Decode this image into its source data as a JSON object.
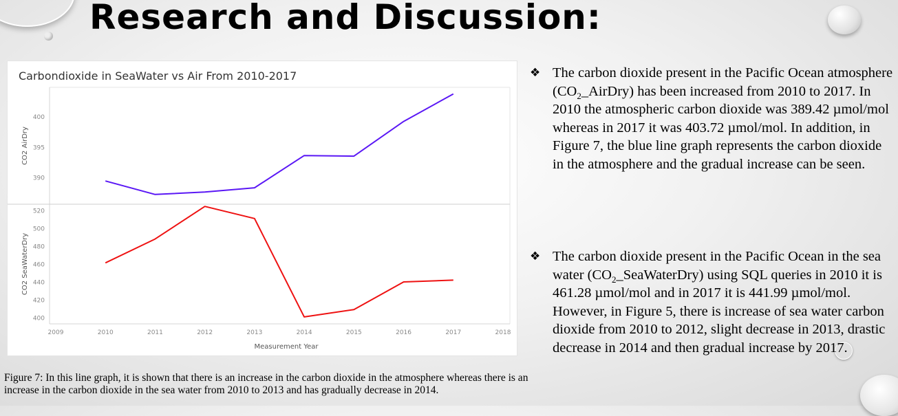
{
  "slide": {
    "title": "Research and Discussion:",
    "caption": "Figure 7: In this line graph, it is shown that there is an increase in the carbon dioxide in the atmosphere whereas there is an increase in the carbon dioxide in the sea water from 2010 to 2013 and has gradually decrease in 2014.",
    "bullet_symbol": "❖",
    "bullets": [
      {
        "pre": "The carbon dioxide present in the Pacific Ocean atmosphere (CO",
        "sub": "2",
        "post": "_AirDry) has been increased from 2010 to 2017. In 2010 the atmospheric carbon dioxide was 389.42 µmol/mol whereas in 2017 it was 403.72 µmol/mol.  In addition, in Figure 7, the blue line graph represents the carbon dioxide in the atmosphere and the gradual increase can be seen."
      },
      {
        "pre": "The carbon dioxide present in the Pacific Ocean in the sea water (CO",
        "sub": "2",
        "post": "_SeaWaterDry) using SQL queries in 2010 it is 461.28 µmol/mol and in 2017 it is 441.99 µmol/mol. However, in Figure 5, there is increase of sea water carbon dioxide from 2010 to 2012, slight decrease in 2013, drastic decrease in 2014 and then gradual increase by 2017."
      }
    ]
  },
  "chart_data": {
    "type": "line",
    "title": "Carbondioxide in SeaWater vs Air From 2010-2017",
    "xlabel": "Measurement Year",
    "x_ticks": [
      "2009",
      "2010",
      "2011",
      "2012",
      "2013",
      "2014",
      "2015",
      "2016",
      "2017",
      "2018"
    ],
    "xlim": [
      2009,
      2018
    ],
    "grid": "horizontal-divider",
    "panels": [
      {
        "ylabel": "CO2 AirDry",
        "y_ticks": [
          "390",
          "395",
          "400"
        ],
        "ylim": [
          385.6,
          404.8
        ],
        "series": [
          {
            "color": "#5a17f5",
            "x": [
              2010,
              2011,
              2012,
              2013,
              2014,
              2015,
              2016,
              2017
            ],
            "values": [
              389.42,
              387.2,
              387.6,
              388.3,
              393.6,
              393.5,
              399.2,
              403.72
            ]
          }
        ]
      },
      {
        "ylabel": "CO2 SeaWaterDry",
        "y_ticks": [
          "400",
          "420",
          "440",
          "460",
          "480",
          "500",
          "520"
        ],
        "ylim": [
          393,
          527
        ],
        "series": [
          {
            "color": "#ee1111",
            "x": [
              2010,
              2011,
              2012,
              2013,
              2014,
              2015,
              2016,
              2017
            ],
            "values": [
              461.28,
              488,
              524.5,
              511,
              400.8,
              409,
              440,
              441.99
            ]
          }
        ]
      }
    ]
  }
}
